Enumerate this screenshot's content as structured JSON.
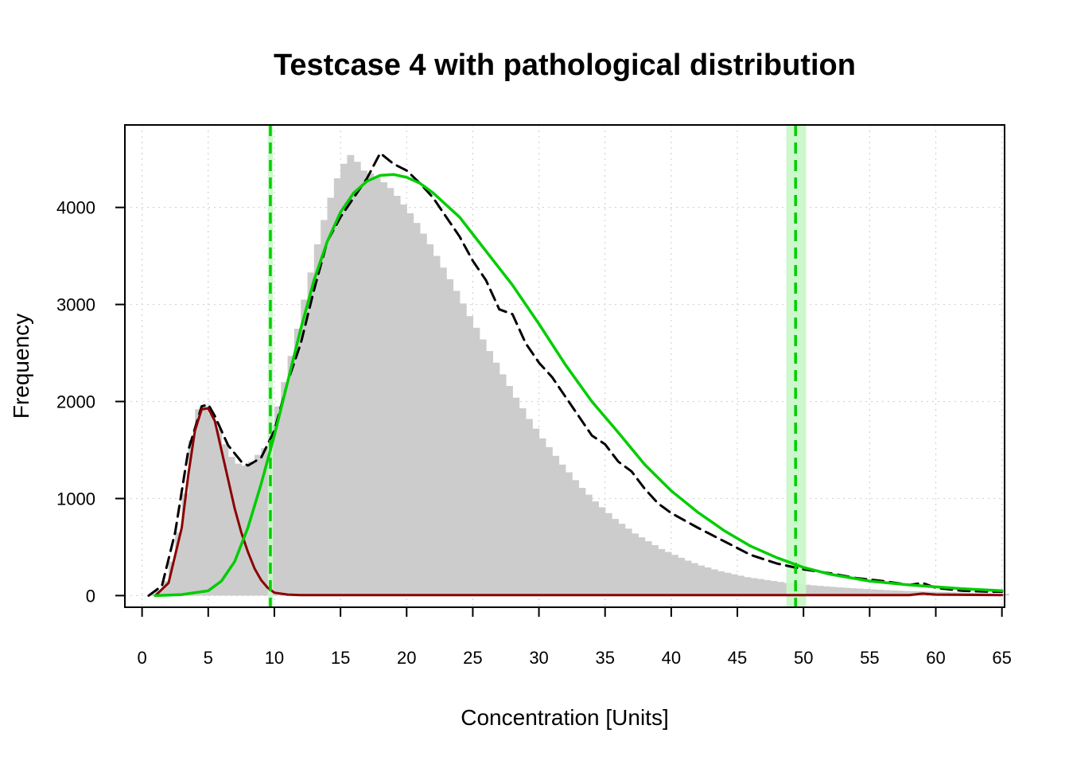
{
  "chart_data": {
    "type": "bar",
    "title": "Testcase 4 with pathological distribution",
    "xlabel": "Concentration [Units]",
    "ylabel": "Frequency",
    "xlim": [
      -1.3,
      65.2
    ],
    "ylim": [
      -120,
      4850
    ],
    "xticks": [
      0,
      5,
      10,
      15,
      20,
      25,
      30,
      35,
      40,
      45,
      50,
      55,
      60,
      65
    ],
    "yticks": [
      0,
      1000,
      2000,
      3000,
      4000
    ],
    "grid": true,
    "colors": {
      "histogram": "#cccccc",
      "kde": "#000000",
      "pathological_fit": "#8b0000",
      "main_fit": "#00cd00",
      "reference_limits": "#00cd00",
      "ci_band": "#c8f7c8"
    },
    "histogram": {
      "bin_width": 0.5,
      "x_start": 0.5,
      "counts": [
        20,
        50,
        150,
        350,
        650,
        1050,
        1600,
        1920,
        1950,
        1870,
        1720,
        1560,
        1430,
        1360,
        1340,
        1380,
        1450,
        1520,
        1760,
        1950,
        2200,
        2470,
        2750,
        3050,
        3330,
        3620,
        3870,
        4100,
        4300,
        4450,
        4540,
        4470,
        4380,
        4350,
        4310,
        4260,
        4200,
        4120,
        4030,
        3940,
        3840,
        3730,
        3620,
        3500,
        3380,
        3260,
        3140,
        3010,
        2880,
        2760,
        2640,
        2520,
        2400,
        2280,
        2160,
        2040,
        1930,
        1820,
        1720,
        1620,
        1530,
        1440,
        1350,
        1270,
        1190,
        1110,
        1040,
        970,
        910,
        850,
        790,
        740,
        690,
        640,
        600,
        560,
        520,
        480,
        450,
        420,
        390,
        360,
        335,
        310,
        290,
        270,
        250,
        235,
        220,
        205,
        190,
        180,
        170,
        160,
        150,
        140,
        130,
        125,
        118,
        112,
        105,
        100,
        95,
        90,
        85,
        80,
        76,
        72,
        68,
        64,
        60,
        57,
        54,
        51,
        48,
        46,
        44,
        42,
        40,
        38,
        36,
        34,
        32,
        30,
        28,
        26,
        24,
        22,
        20,
        18
      ]
    },
    "series": [
      {
        "type": "line",
        "style": "dashed",
        "x": [
          0.5,
          1.5,
          2.5,
          3.5,
          4.5,
          5.0,
          5.5,
          6.5,
          7.5,
          8.0,
          9.0,
          10.0,
          11.0,
          12.0,
          13.0,
          14.0,
          15.0,
          16.0,
          17.0,
          18.0,
          19.0,
          20.0,
          21.0,
          22.0,
          23.0,
          24.0,
          25.0,
          26.0,
          27.0,
          28.0,
          29.0,
          30.0,
          31.0,
          32.0,
          33.0,
          34.0,
          35.0,
          36.0,
          37.0,
          38.0,
          39.0,
          40.0,
          42.0,
          44.0,
          46.0,
          48.0,
          50.0,
          52.0,
          54.0,
          56.0,
          58.0,
          59.0,
          60.0,
          62.0,
          64.0,
          65.0
        ],
        "y": [
          0,
          100,
          650,
          1500,
          1950,
          1970,
          1850,
          1550,
          1380,
          1340,
          1420,
          1700,
          2200,
          2600,
          3150,
          3650,
          3900,
          4100,
          4300,
          4560,
          4450,
          4380,
          4250,
          4100,
          3900,
          3700,
          3450,
          3250,
          2950,
          2900,
          2600,
          2400,
          2250,
          2050,
          1850,
          1650,
          1560,
          1380,
          1280,
          1100,
          950,
          850,
          700,
          560,
          420,
          330,
          270,
          230,
          180,
          150,
          110,
          130,
          80,
          50,
          40,
          40
        ]
      },
      {
        "type": "line",
        "x": [
          1.0,
          2.0,
          3.0,
          3.5,
          4.0,
          4.5,
          5.0,
          5.5,
          6.0,
          6.5,
          7.0,
          7.5,
          8.0,
          8.5,
          9.0,
          9.5,
          10.0,
          11.0,
          12.0,
          20.0,
          30.0,
          40.0,
          50.0,
          58.0,
          59.0,
          60.0,
          65.0
        ],
        "y": [
          0,
          130,
          700,
          1250,
          1700,
          1920,
          1930,
          1800,
          1500,
          1200,
          900,
          650,
          450,
          280,
          160,
          80,
          30,
          10,
          5,
          5,
          5,
          5,
          5,
          5,
          20,
          10,
          5
        ]
      },
      {
        "type": "line",
        "x": [
          1.0,
          3.0,
          5.0,
          6.0,
          7.0,
          8.0,
          9.0,
          10.0,
          11.0,
          12.0,
          13.0,
          14.0,
          15.0,
          16.0,
          17.0,
          18.0,
          19.0,
          20.0,
          21.0,
          22.0,
          24.0,
          26.0,
          28.0,
          30.0,
          32.0,
          34.0,
          36.0,
          38.0,
          40.0,
          42.0,
          44.0,
          46.0,
          48.0,
          50.0,
          52.0,
          55.0,
          58.0,
          60.0,
          62.0,
          65.0
        ],
        "y": [
          0,
          10,
          50,
          150,
          350,
          700,
          1150,
          1650,
          2200,
          2750,
          3250,
          3650,
          3950,
          4150,
          4270,
          4330,
          4340,
          4310,
          4250,
          4150,
          3900,
          3550,
          3200,
          2800,
          2380,
          2000,
          1680,
          1350,
          1080,
          860,
          670,
          510,
          390,
          290,
          220,
          150,
          110,
          90,
          70,
          50
        ]
      }
    ],
    "reference_limits": [
      {
        "x": 9.7,
        "ci": [
          9.5,
          9.9
        ]
      },
      {
        "x": 49.4,
        "ci": [
          48.7,
          50.2
        ]
      }
    ]
  }
}
